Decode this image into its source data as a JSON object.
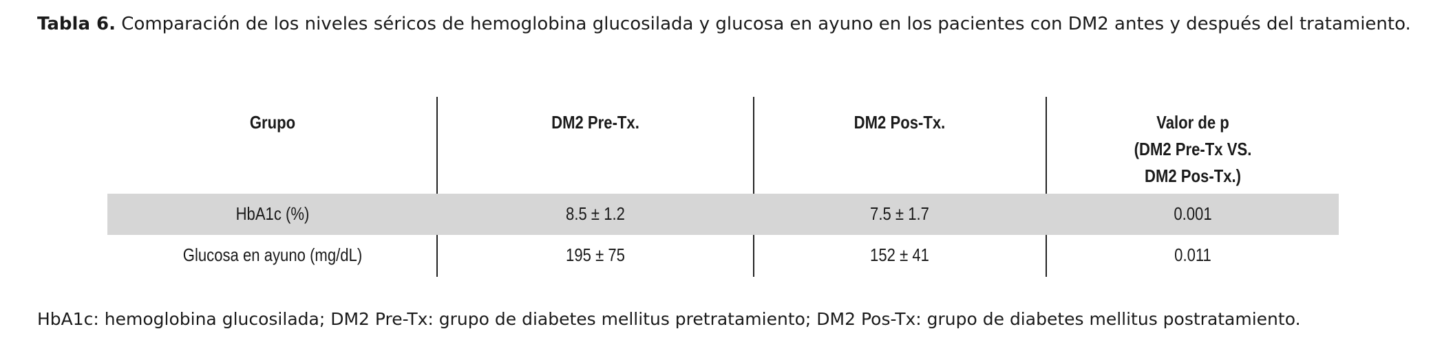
{
  "caption": {
    "label": "Tabla 6.",
    "text": "Comparación de los niveles séricos de hemoglobina glucosilada y glucosa en ayuno en los pacientes con DM2 antes y después del tratamiento."
  },
  "table": {
    "header": [
      [
        "Grupo"
      ],
      [
        "DM2 Pre-Tx."
      ],
      [
        "DM2 Pos-Tx."
      ],
      [
        "Valor de p",
        "(DM2 Pre-Tx VS.",
        "DM2 Pos-Tx.)"
      ]
    ],
    "rows": [
      [
        "HbA1c (%)",
        "8.5 ± 1.2",
        "7.5 ± 1.7",
        "0.001"
      ],
      [
        "Glucosa en ayuno (mg/dL)",
        "195 ± 75",
        "152 ± 41",
        "0.011"
      ]
    ]
  },
  "footnote": "HbA1c: hemoglobina glucosilada; DM2 Pre-Tx: grupo de diabetes mellitus pretratamiento; DM2 Pos-Tx: grupo de diabetes mellitus postratamiento."
}
